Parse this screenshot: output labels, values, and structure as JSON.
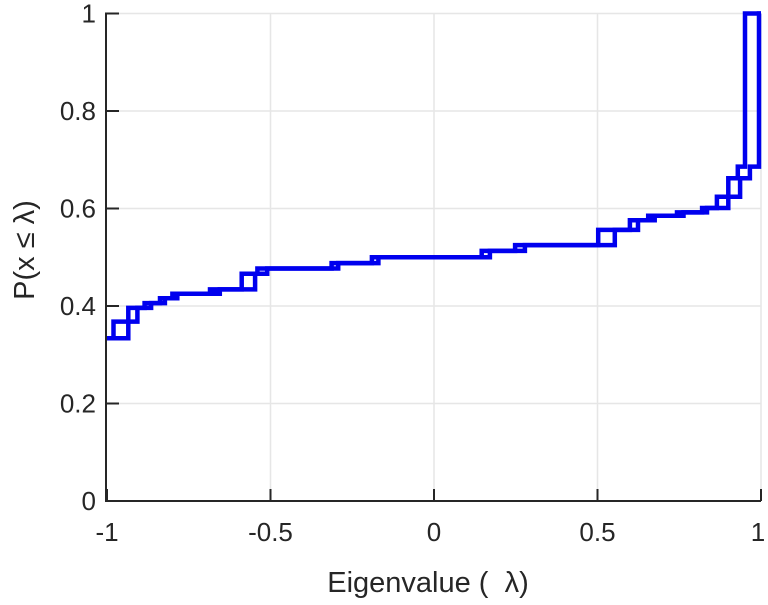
{
  "figure": {
    "background_color": "#ffffff",
    "axis_color": "#262626",
    "grid_color": "#e6e6e6",
    "line_color": "#0000ee"
  },
  "chart_data": {
    "type": "line",
    "subtype": "empirical-cdf-stairs",
    "title": "",
    "xlabel": "Eigenvalue (  λ)",
    "ylabel": "P(x ≤ λ)",
    "xlim": [
      -1,
      1
    ],
    "ylim": [
      0,
      1
    ],
    "xticks": [
      -1,
      -0.5,
      0,
      0.5,
      1
    ],
    "xtick_labels": [
      "-1",
      "-0.5",
      "0",
      "0.5",
      "1"
    ],
    "yticks": [
      0,
      0.2,
      0.4,
      0.6,
      0.8,
      1
    ],
    "ytick_labels": [
      "0",
      "0.2",
      "0.4",
      "0.6",
      "0.8",
      "1"
    ],
    "grid": true,
    "legend": null,
    "line_color": "#0000ee",
    "line_width": 4.5,
    "start_value": 0.334,
    "end_value": 1.0,
    "jumps_note": "Two overlapping ECDF staircases drawn in the same blue; curve A rises at x, curve B rises at x+box_width, both to level f_after. Boxes visible where box_width and jump are large.",
    "jumps": [
      {
        "x": -0.98,
        "box_width": 0.045,
        "f_after": 0.368
      },
      {
        "x": -0.935,
        "box_width": 0.028,
        "f_after": 0.396
      },
      {
        "x": -0.885,
        "box_width": 0.02,
        "f_after": 0.406
      },
      {
        "x": -0.838,
        "box_width": 0.015,
        "f_after": 0.416
      },
      {
        "x": -0.8,
        "box_width": 0.015,
        "f_after": 0.425
      },
      {
        "x": -0.685,
        "box_width": 0.03,
        "f_after": 0.434
      },
      {
        "x": -0.588,
        "box_width": 0.041,
        "f_after": 0.466
      },
      {
        "x": -0.54,
        "box_width": 0.03,
        "f_after": 0.477
      },
      {
        "x": -0.313,
        "box_width": 0.02,
        "f_after": 0.488
      },
      {
        "x": -0.19,
        "box_width": 0.02,
        "f_after": 0.5
      },
      {
        "x": 0.146,
        "box_width": 0.025,
        "f_after": 0.513
      },
      {
        "x": 0.248,
        "box_width": 0.03,
        "f_after": 0.525
      },
      {
        "x": 0.502,
        "box_width": 0.051,
        "f_after": 0.556
      },
      {
        "x": 0.599,
        "box_width": 0.025,
        "f_after": 0.576
      },
      {
        "x": 0.655,
        "box_width": 0.02,
        "f_after": 0.585
      },
      {
        "x": 0.743,
        "box_width": 0.02,
        "f_after": 0.592
      },
      {
        "x": 0.82,
        "box_width": 0.015,
        "f_after": 0.601
      },
      {
        "x": 0.865,
        "box_width": 0.035,
        "f_after": 0.624
      },
      {
        "x": 0.9,
        "box_width": 0.036,
        "f_after": 0.662
      },
      {
        "x": 0.929,
        "box_width": 0.037,
        "f_after": 0.686
      },
      {
        "x": 0.951,
        "box_width": 0.043,
        "f_after": 1.0
      }
    ]
  }
}
